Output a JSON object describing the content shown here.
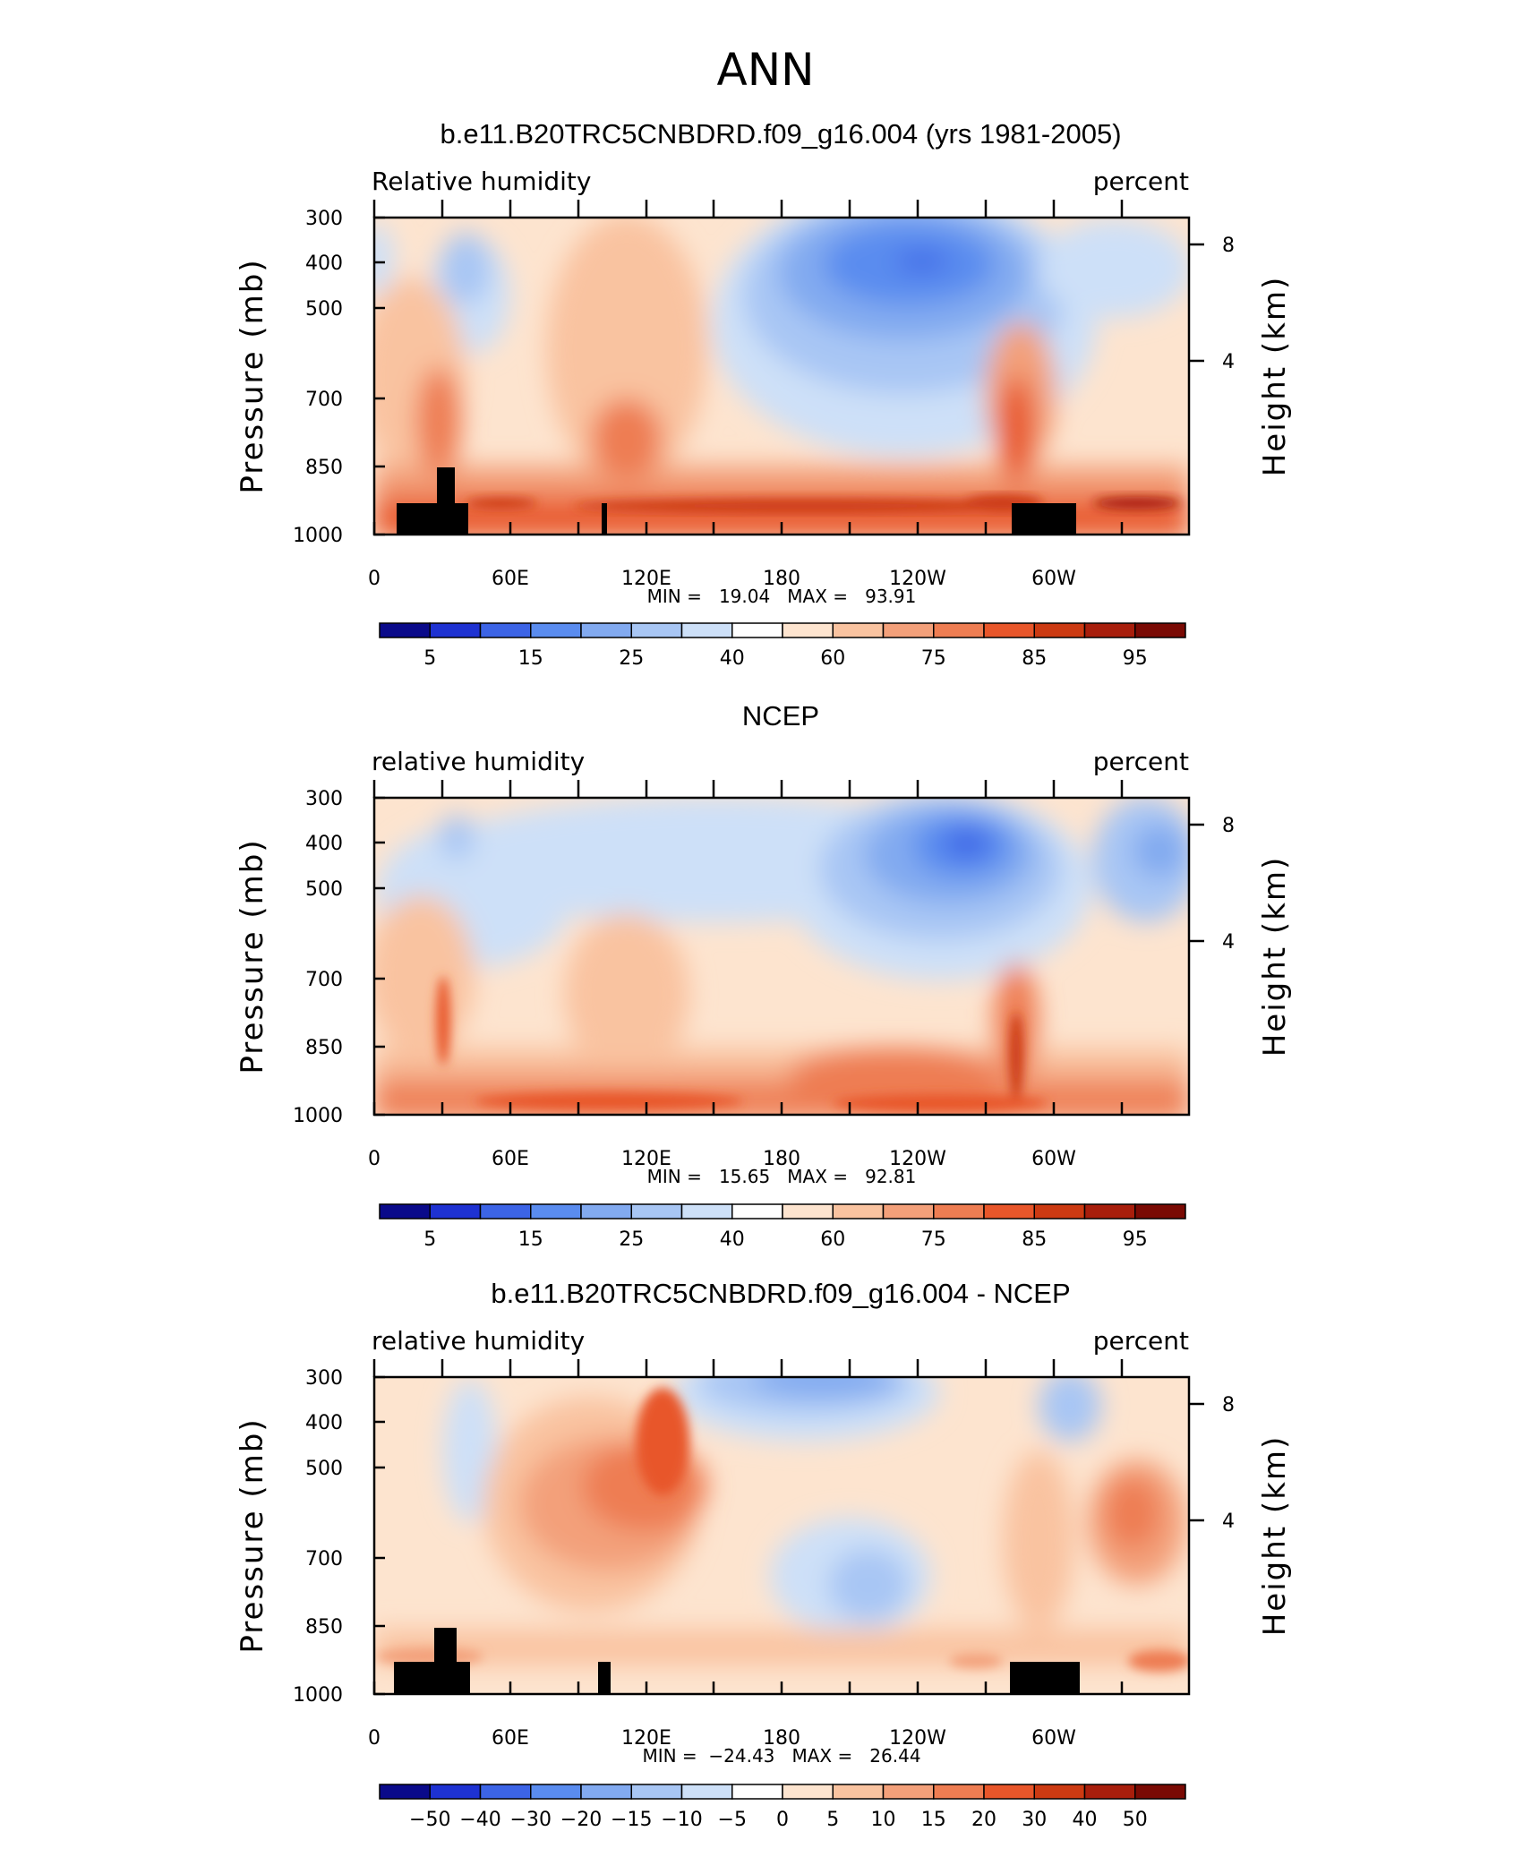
{
  "figure": {
    "title": "ANN"
  },
  "chart_data": [
    {
      "type": "heatmap",
      "title": "b.e11.B20TRC5CNBDRD.f09_g16.004 (yrs 1981-2005)",
      "left_label": "Relative humidity",
      "right_label": "percent",
      "ylabel": "Pressure (mb)",
      "y2label": "Height (km)",
      "yticks": [
        "300",
        "400",
        "500",
        "700",
        "850",
        "1000"
      ],
      "y2ticks": [
        "8",
        "4"
      ],
      "xticks": [
        "0",
        "60E",
        "120E",
        "180",
        "120W",
        "60W"
      ],
      "stats": "MIN =   19.04   MAX =   93.91",
      "colorbar_labels": [
        "5",
        "15",
        "25",
        "40",
        "60",
        "75",
        "85",
        "95"
      ],
      "colorbar_colors": [
        "#0a0a8a",
        "#1e32d2",
        "#3c64e6",
        "#5a8cef",
        "#82aaf0",
        "#a8c6f4",
        "#cde0f8",
        "#ffffff",
        "#fde4cf",
        "#f9c3a0",
        "#f3a07a",
        "#ee7d52",
        "#e8562a",
        "#cc3a12",
        "#a81e0c",
        "#7a0a04"
      ],
      "max_region": "Indian Ocean / Pacific near-surface (~900 mb)",
      "min_region": "~150W, 400 mb"
    },
    {
      "type": "heatmap",
      "title": "NCEP",
      "left_label": "relative humidity",
      "right_label": "percent",
      "ylabel": "Pressure (mb)",
      "y2label": "Height (km)",
      "yticks": [
        "300",
        "400",
        "500",
        "700",
        "850",
        "1000"
      ],
      "y2ticks": [
        "8",
        "4"
      ],
      "xticks": [
        "0",
        "60E",
        "120E",
        "180",
        "120W",
        "60W"
      ],
      "stats": "MIN =   15.65   MAX =   92.81",
      "colorbar_labels": [
        "5",
        "15",
        "25",
        "40",
        "60",
        "75",
        "85",
        "95"
      ],
      "colorbar_colors": [
        "#0a0a8a",
        "#1e32d2",
        "#3c64e6",
        "#5a8cef",
        "#82aaf0",
        "#a8c6f4",
        "#cde0f8",
        "#ffffff",
        "#fde4cf",
        "#f9c3a0",
        "#f3a07a",
        "#ee7d52",
        "#e8562a",
        "#cc3a12",
        "#a81e0c",
        "#7a0a04"
      ]
    },
    {
      "type": "heatmap",
      "title": "b.e11.B20TRC5CNBDRD.f09_g16.004 - NCEP",
      "left_label": "relative humidity",
      "right_label": "percent",
      "ylabel": "Pressure (mb)",
      "y2label": "Height (km)",
      "yticks": [
        "300",
        "400",
        "500",
        "700",
        "850",
        "1000"
      ],
      "y2ticks": [
        "8",
        "4"
      ],
      "xticks": [
        "0",
        "60E",
        "120E",
        "180",
        "120W",
        "60W"
      ],
      "stats": "MIN =  −24.43   MAX =   26.44",
      "colorbar_labels": [
        "−50",
        "−40",
        "−30",
        "−20",
        "−15",
        "−10",
        "−5",
        "0",
        "5",
        "10",
        "15",
        "20",
        "30",
        "40",
        "50"
      ],
      "colorbar_colors": [
        "#0a0a8a",
        "#1e32d2",
        "#3c64e6",
        "#5a8cef",
        "#82aaf0",
        "#a8c6f4",
        "#cde0f8",
        "#ffffff",
        "#fde4cf",
        "#f9c3a0",
        "#f3a07a",
        "#ee7d52",
        "#e8562a",
        "#cc3a12",
        "#a81e0c",
        "#7a0a04"
      ]
    }
  ]
}
